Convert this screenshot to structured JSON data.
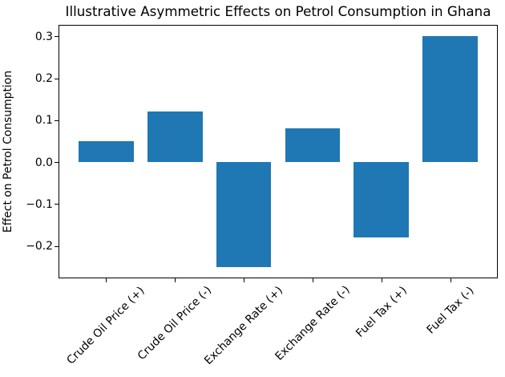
{
  "chart_data": {
    "type": "bar",
    "title": "Illustrative Asymmetric Effects on Petrol Consumption in Ghana",
    "xlabel": "",
    "ylabel": "Effect on Petrol Consumption",
    "categories": [
      "Crude Oil Price (+)",
      "Crude Oil Price (-)",
      "Exchange Rate (+)",
      "Exchange Rate (-)",
      "Fuel Tax (+)",
      "Fuel Tax (-)"
    ],
    "values": [
      0.05,
      0.12,
      -0.25,
      0.08,
      -0.18,
      0.3
    ],
    "bar_color": "#1f77b4",
    "ylim": [
      -0.2775,
      0.3275
    ],
    "xlim": [
      -0.69,
      5.69
    ],
    "bar_width_units": 0.8,
    "yticks": [
      0.3,
      0.2,
      0.1,
      0.0,
      -0.1,
      -0.2
    ],
    "ytick_labels": [
      "0.3",
      "0.2",
      "0.1",
      "0.0",
      "−0.1",
      "−0.2"
    ],
    "x_tick_rotation_deg": 45,
    "grid": false,
    "legend_position": "none"
  }
}
